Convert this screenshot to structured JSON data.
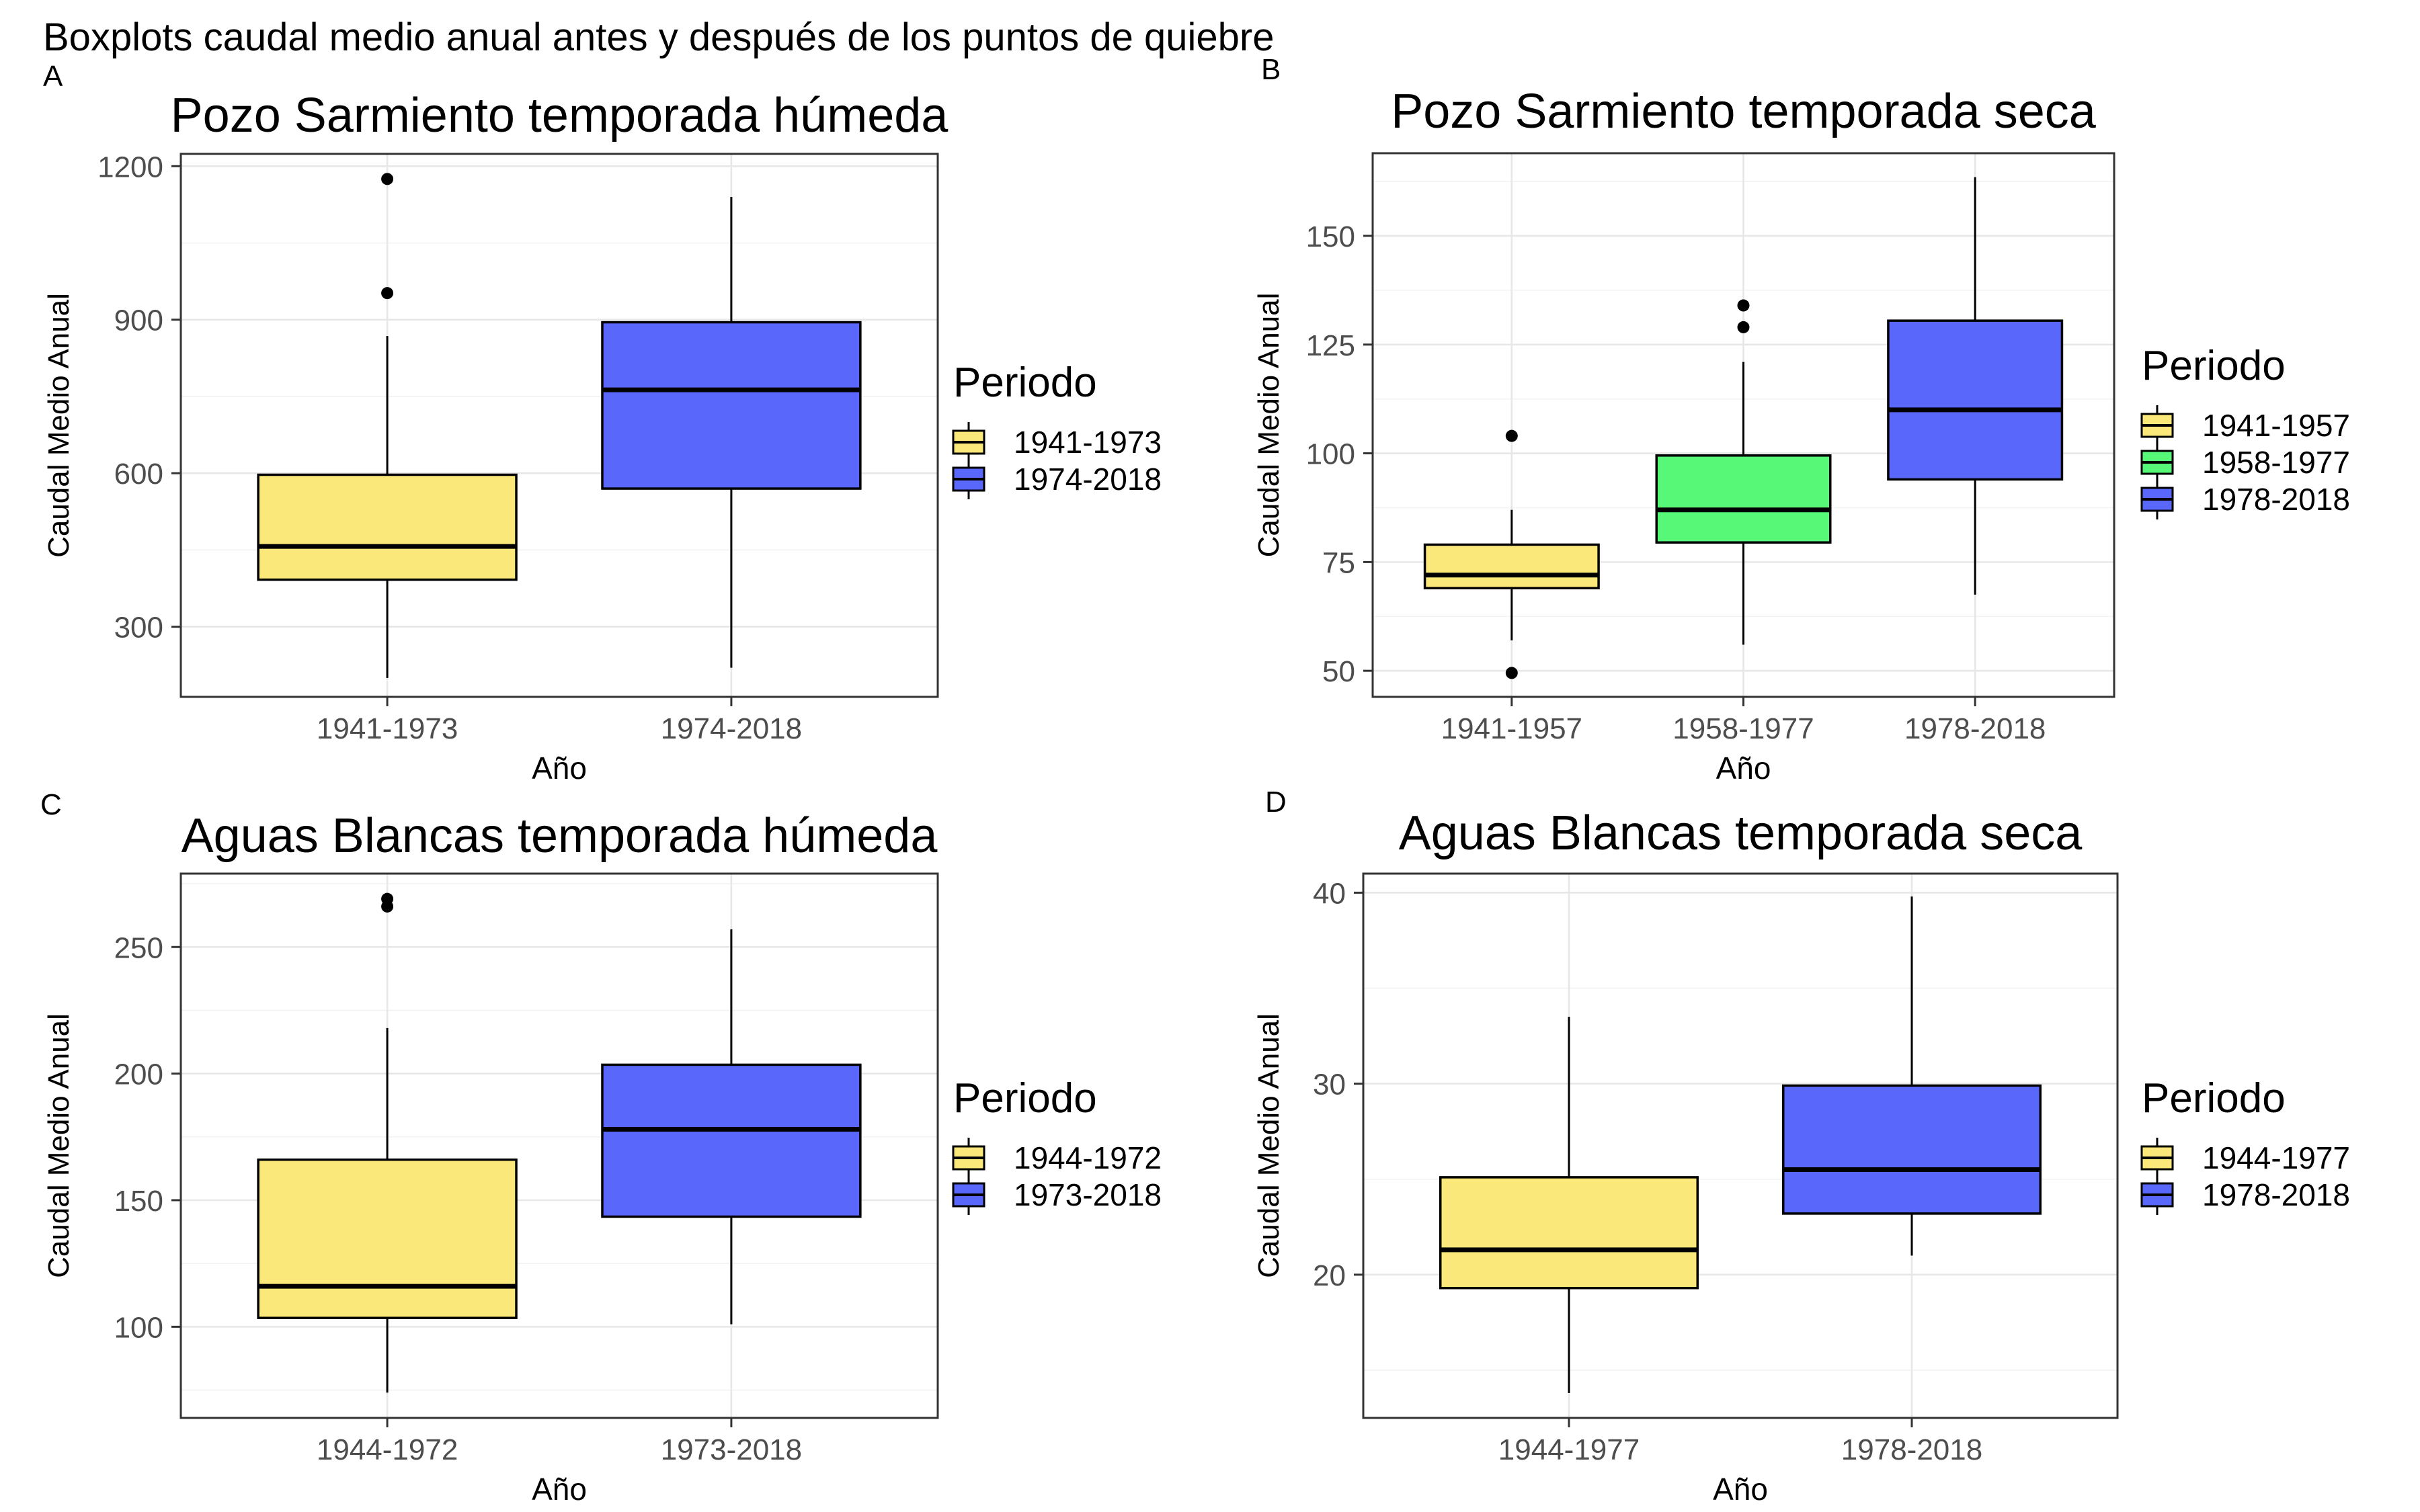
{
  "page_title": "Boxplots caudal medio anual antes y después de los puntos de quiebre",
  "colors": {
    "yellow": "#FAE97A",
    "green": "#57F878",
    "blue": "#5A67FB",
    "grid_major": "#E7E7E7",
    "grid_minor": "#F3F3F3",
    "panel_border": "#333333",
    "tick_mark": "#333333",
    "tick_label": "#4D4D4D",
    "text": "#000000"
  },
  "chart_data": [
    {
      "type": "boxplot",
      "panel_letter": "A",
      "title": "Pozo Sarmiento temporada húmeda",
      "xlabel": "Año",
      "ylabel": "Caudal Medio Anual",
      "legend_title": "Periodo",
      "ylim": [
        163,
        1224
      ],
      "yticks": [
        300,
        600,
        900,
        1200
      ],
      "yticks_minor": [
        450,
        750,
        1050
      ],
      "categories": [
        "1941-1973",
        "1974-2018"
      ],
      "series": [
        {
          "name": "1941-1973",
          "color_key": "yellow",
          "whisker_low": 200,
          "q1": 392,
          "median": 457,
          "q3": 597,
          "whisker_high": 868,
          "outliers": [
            952,
            1175
          ]
        },
        {
          "name": "1974-2018",
          "color_key": "blue",
          "whisker_low": 220,
          "q1": 570,
          "median": 763,
          "q3": 895,
          "whisker_high": 1140,
          "outliers": []
        }
      ]
    },
    {
      "type": "boxplot",
      "panel_letter": "B",
      "title": "Pozo Sarmiento temporada seca",
      "xlabel": "Año",
      "ylabel": "Caudal Medio Anual",
      "legend_title": "Periodo",
      "ylim": [
        44,
        169
      ],
      "yticks": [
        50,
        75,
        100,
        125,
        150
      ],
      "yticks_minor": [
        62.5,
        87.5,
        112.5,
        137.5,
        162.5
      ],
      "categories": [
        "1941-1957",
        "1958-1977",
        "1978-2018"
      ],
      "series": [
        {
          "name": "1941-1957",
          "color_key": "yellow",
          "whisker_low": 57,
          "q1": 69,
          "median": 72,
          "q3": 79,
          "whisker_high": 87,
          "outliers": [
            49.5,
            104
          ]
        },
        {
          "name": "1958-1977",
          "color_key": "green",
          "whisker_low": 56,
          "q1": 79.5,
          "median": 87,
          "q3": 99.5,
          "whisker_high": 121,
          "outliers": [
            129,
            134
          ]
        },
        {
          "name": "1978-2018",
          "color_key": "blue",
          "whisker_low": 67.5,
          "q1": 94,
          "median": 110,
          "q3": 130.5,
          "whisker_high": 163.5,
          "outliers": []
        }
      ]
    },
    {
      "type": "boxplot",
      "panel_letter": "C",
      "title": "Aguas Blancas temporada húmeda",
      "xlabel": "Año",
      "ylabel": "Caudal Medio Anual",
      "legend_title": "Periodo",
      "ylim": [
        64,
        279
      ],
      "yticks": [
        100,
        150,
        200,
        250
      ],
      "yticks_minor": [
        75,
        125,
        175,
        225,
        275
      ],
      "categories": [
        "1944-1972",
        "1973-2018"
      ],
      "series": [
        {
          "name": "1944-1972",
          "color_key": "yellow",
          "whisker_low": 74,
          "q1": 103.5,
          "median": 116,
          "q3": 166,
          "whisker_high": 218,
          "outliers": [
            266,
            269
          ]
        },
        {
          "name": "1973-2018",
          "color_key": "blue",
          "whisker_low": 101,
          "q1": 143.5,
          "median": 178,
          "q3": 203.5,
          "whisker_high": 257,
          "outliers": []
        }
      ]
    },
    {
      "type": "boxplot",
      "panel_letter": "D",
      "title": "Aguas Blancas temporada seca",
      "xlabel": "Año",
      "ylabel": "Caudal Medio Anual",
      "legend_title": "Periodo",
      "ylim": [
        12.5,
        41
      ],
      "yticks": [
        20,
        30,
        40
      ],
      "yticks_minor": [
        15,
        25,
        35
      ],
      "categories": [
        "1944-1977",
        "1978-2018"
      ],
      "series": [
        {
          "name": "1944-1977",
          "color_key": "yellow",
          "whisker_low": 13.8,
          "q1": 19.3,
          "median": 21.3,
          "q3": 25.1,
          "whisker_high": 33.5,
          "outliers": []
        },
        {
          "name": "1978-2018",
          "color_key": "blue",
          "whisker_low": 21,
          "q1": 23.2,
          "median": 25.5,
          "q3": 29.9,
          "whisker_high": 39.8,
          "outliers": []
        }
      ]
    }
  ]
}
